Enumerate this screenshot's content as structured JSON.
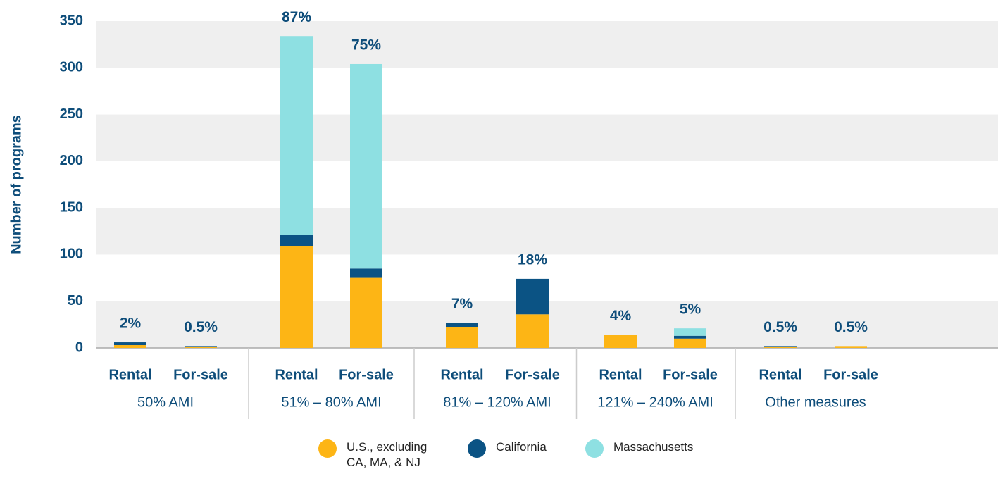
{
  "chart_data": {
    "type": "stacked_bar",
    "y_axis_label": "Number of programs",
    "categories": [
      "Rental",
      "For-sale",
      "Rental",
      "For-sale",
      "Rental",
      "For-sale",
      "Rental",
      "For-sale",
      "Rental",
      "For-sale"
    ],
    "groups": [
      "50% AMI",
      "51% – 80% AMI",
      "81% – 120% AMI",
      "121% – 240% AMI",
      "Other measures"
    ],
    "share_labels": [
      "2%",
      "0.5%",
      "87%",
      "75%",
      "7%",
      "18%",
      "4%",
      "5%",
      "0.5%",
      "0.5%"
    ],
    "series": [
      {
        "name": "U.S., excluding CA, MA, & NJ",
        "color": "#fdb515",
        "values": [
          3,
          1,
          109,
          75,
          22,
          36,
          14,
          10,
          1,
          2
        ]
      },
      {
        "name": "California",
        "color": "#0b5384",
        "values": [
          3,
          1,
          12,
          10,
          5,
          38,
          0,
          3,
          1,
          0
        ]
      },
      {
        "name": "Massachusetts",
        "color": "#8ee0e2",
        "values": [
          0,
          0,
          213,
          219,
          0,
          0,
          0,
          8,
          0,
          0
        ]
      }
    ],
    "ylim": [
      0,
      350
    ],
    "yticks": [
      0,
      50,
      100,
      150,
      200,
      250,
      300,
      350
    ],
    "grid_bands": true
  }
}
